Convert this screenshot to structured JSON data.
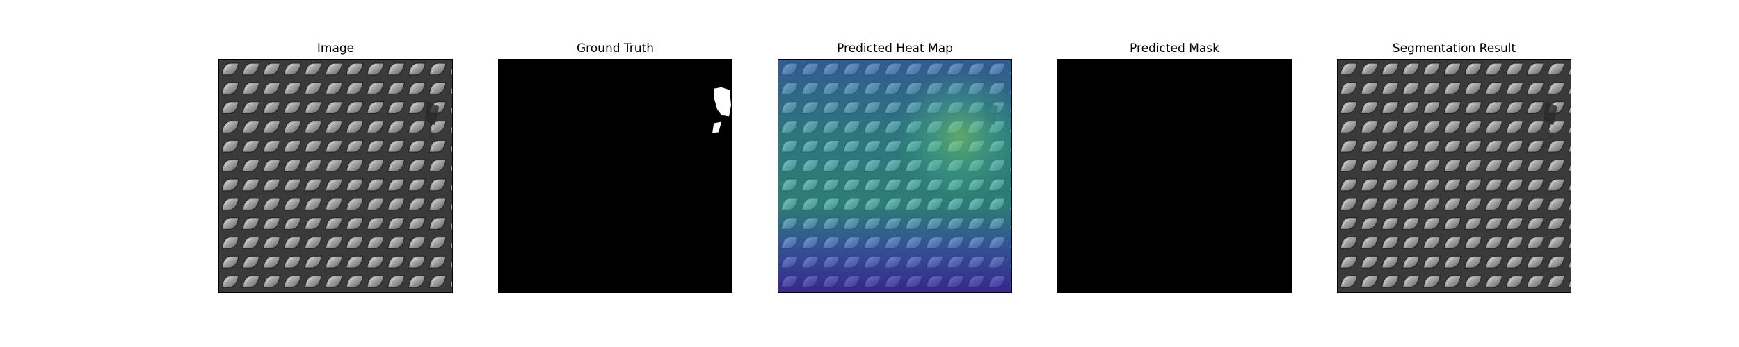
{
  "panels": [
    {
      "title": "Image"
    },
    {
      "title": "Ground Truth"
    },
    {
      "title": "Predicted Heat Map"
    },
    {
      "title": "Predicted Mask"
    },
    {
      "title": "Segmentation Result"
    }
  ],
  "colors": {
    "background": "#ffffff",
    "mask_background": "#000000",
    "mask_foreground": "#ffffff",
    "texture_base": "#3c3c3c",
    "texture_cell": "#9a9a9a"
  }
}
